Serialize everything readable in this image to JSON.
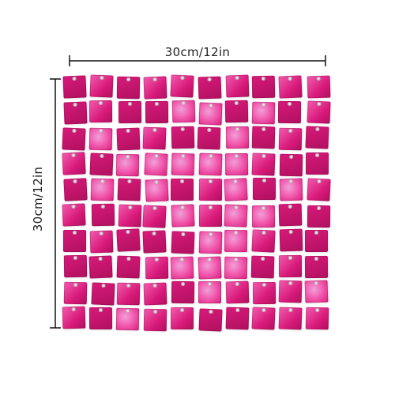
{
  "width_label": "30cm/12in",
  "height_label": "30cm/12in",
  "colors": {
    "base": "#d81a7a",
    "light": "#f25db0",
    "dark": "#b0105f",
    "holo": "#f0a0d8"
  },
  "grid": {
    "rows": 10,
    "cols": 10
  }
}
